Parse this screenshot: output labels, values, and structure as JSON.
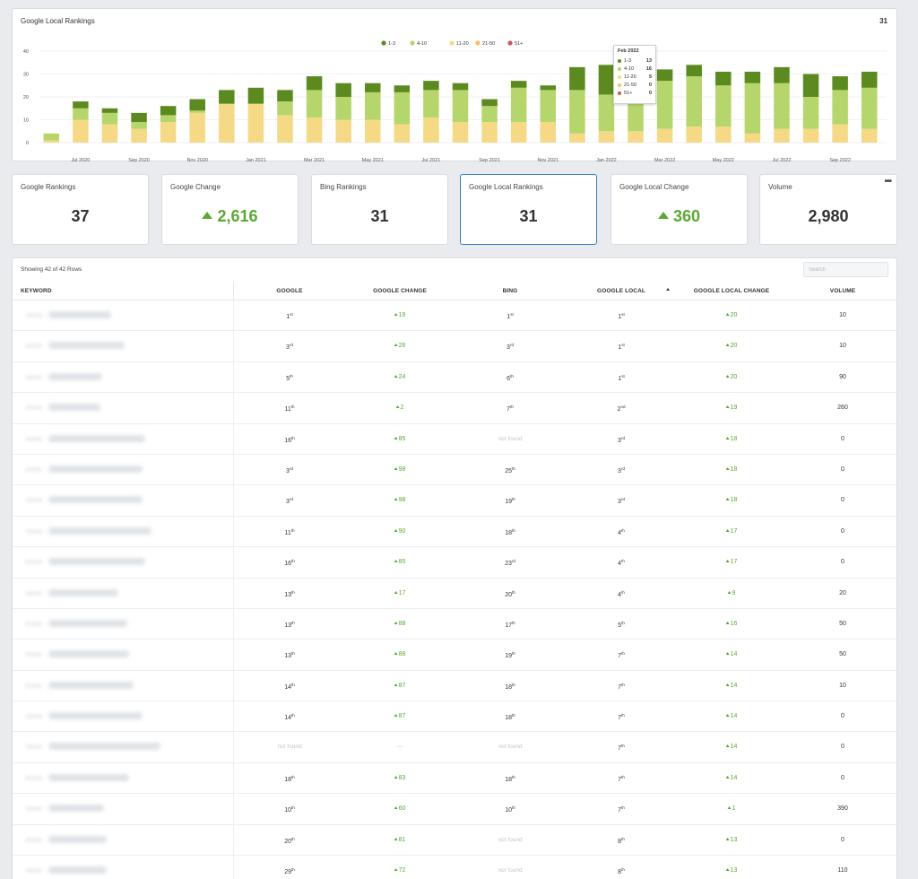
{
  "chart": {
    "title": "Google Local Rankings",
    "total": "31"
  },
  "chart_data": {
    "type": "bar",
    "stacked": true,
    "title": "Google Local Rankings",
    "ylim": [
      0,
      40
    ],
    "yticks": [
      0,
      10,
      20,
      30,
      40
    ],
    "legend_position": "top-center",
    "series": [
      {
        "name": "1-3",
        "color": "#5b8a1f"
      },
      {
        "name": "4-10",
        "color": "#b5d66a"
      },
      {
        "name": "11-20",
        "color": "#f5d985"
      },
      {
        "name": "21-50",
        "color": "#f7c25c"
      },
      {
        "name": "51+",
        "color": "#d9534f"
      }
    ],
    "x_tick_labels": [
      "Jul 2020",
      "Sep 2020",
      "Nov 2020",
      "Jan 2021",
      "Mar 2021",
      "May 2021",
      "Jul 2021",
      "Sep 2021",
      "Nov 2021",
      "Jan 2022",
      "Mar 2022",
      "May 2022",
      "Jul 2022",
      "Sep 2022"
    ],
    "bars": [
      {
        "s1": 0,
        "s2": 3,
        "s3": 1
      },
      {
        "s1": 3,
        "s2": 5,
        "s3": 10
      },
      {
        "s1": 2,
        "s2": 5,
        "s3": 8
      },
      {
        "s1": 4,
        "s2": 3,
        "s3": 6
      },
      {
        "s1": 4,
        "s2": 3,
        "s3": 9
      },
      {
        "s1": 5,
        "s2": 1,
        "s3": 13
      },
      {
        "s1": 6,
        "s2": 0,
        "s3": 17
      },
      {
        "s1": 7,
        "s2": 0,
        "s3": 17
      },
      {
        "s1": 5,
        "s2": 6,
        "s3": 12
      },
      {
        "s1": 6,
        "s2": 12,
        "s3": 11
      },
      {
        "s1": 6,
        "s2": 10,
        "s3": 10
      },
      {
        "s1": 4,
        "s2": 12,
        "s3": 10
      },
      {
        "s1": 3,
        "s2": 14,
        "s3": 8
      },
      {
        "s1": 4,
        "s2": 12,
        "s3": 11
      },
      {
        "s1": 3,
        "s2": 14,
        "s3": 9
      },
      {
        "s1": 3,
        "s2": 7,
        "s3": 9
      },
      {
        "s1": 3,
        "s2": 15,
        "s3": 9
      },
      {
        "s1": 2,
        "s2": 14,
        "s3": 9
      },
      {
        "s1": 10,
        "s2": 19,
        "s3": 4
      },
      {
        "s1": 13,
        "s2": 16,
        "s3": 5
      },
      {
        "s1": 12,
        "s2": 17,
        "s3": 5
      },
      {
        "s1": 5,
        "s2": 21,
        "s3": 6
      },
      {
        "s1": 5,
        "s2": 22,
        "s3": 7
      },
      {
        "s1": 6,
        "s2": 18,
        "s3": 7
      },
      {
        "s1": 5,
        "s2": 22,
        "s3": 4
      },
      {
        "s1": 7,
        "s2": 20,
        "s3": 6
      },
      {
        "s1": 10,
        "s2": 14,
        "s3": 6
      },
      {
        "s1": 6,
        "s2": 15,
        "s3": 8
      },
      {
        "s1": 7,
        "s2": 18,
        "s3": 6
      }
    ],
    "tooltip": {
      "title": "Feb 2022",
      "rows": [
        {
          "label": "1-3",
          "value": "13",
          "color": "#5b8a1f"
        },
        {
          "label": "4-10",
          "value": "16",
          "color": "#b5d66a"
        },
        {
          "label": "11-20",
          "value": "5",
          "color": "#f5d985"
        },
        {
          "label": "21-50",
          "value": "0",
          "color": "#f7c25c"
        },
        {
          "label": "51+",
          "value": "0",
          "color": "#d9534f"
        }
      ]
    }
  },
  "stats": [
    {
      "label": "Google Rankings",
      "value": "37",
      "positive": false
    },
    {
      "label": "Google Change",
      "value": "2,616",
      "positive": true
    },
    {
      "label": "Bing Rankings",
      "value": "31",
      "positive": false
    },
    {
      "label": "Google Local Rankings",
      "value": "31",
      "positive": false,
      "active": true
    },
    {
      "label": "Google Local Change",
      "value": "360",
      "positive": true
    },
    {
      "label": "Volume",
      "value": "2,980",
      "positive": false,
      "menu": "•••"
    }
  ],
  "table": {
    "rows_info": "Showing 42 of 42 Rows",
    "search_placeholder": "Search",
    "headers": {
      "keyword": "KEYWORD",
      "google": "GOOGLE",
      "google_change": "GOOGLE CHANGE",
      "bing": "BING",
      "google_local": "GOOGLE LOCAL",
      "google_local_change": "GOOGLE LOCAL CHANGE",
      "volume": "VOLUME"
    },
    "rows": [
      {
        "google": [
          "1",
          "st"
        ],
        "gchange": "19",
        "bing": [
          "1",
          "st"
        ],
        "glocal": [
          "1",
          "st"
        ],
        "glchange": "20",
        "volume": "10"
      },
      {
        "google": [
          "3",
          "rd"
        ],
        "gchange": "26",
        "bing": [
          "3",
          "rd"
        ],
        "glocal": [
          "1",
          "st"
        ],
        "glchange": "20",
        "volume": "10"
      },
      {
        "google": [
          "5",
          "th"
        ],
        "gchange": "24",
        "bing": [
          "6",
          "th"
        ],
        "glocal": [
          "1",
          "st"
        ],
        "glchange": "20",
        "volume": "90"
      },
      {
        "google": [
          "11",
          "th"
        ],
        "gchange": "2",
        "bing": [
          "7",
          "th"
        ],
        "glocal": [
          "2",
          "nd"
        ],
        "glchange": "19",
        "volume": "260"
      },
      {
        "google": [
          "16",
          "th"
        ],
        "gchange": "85",
        "bing": null,
        "glocal": [
          "3",
          "rd"
        ],
        "glchange": "18",
        "volume": "0"
      },
      {
        "google": [
          "3",
          "rd"
        ],
        "gchange": "98",
        "bing": [
          "25",
          "th"
        ],
        "glocal": [
          "3",
          "rd"
        ],
        "glchange": "18",
        "volume": "0"
      },
      {
        "google": [
          "3",
          "rd"
        ],
        "gchange": "98",
        "bing": [
          "19",
          "th"
        ],
        "glocal": [
          "3",
          "rd"
        ],
        "glchange": "18",
        "volume": "0"
      },
      {
        "google": [
          "11",
          "th"
        ],
        "gchange": "90",
        "bing": [
          "18",
          "th"
        ],
        "glocal": [
          "4",
          "th"
        ],
        "glchange": "17",
        "volume": "0"
      },
      {
        "google": [
          "16",
          "th"
        ],
        "gchange": "85",
        "bing": [
          "23",
          "rd"
        ],
        "glocal": [
          "4",
          "th"
        ],
        "glchange": "17",
        "volume": "0"
      },
      {
        "google": [
          "13",
          "th"
        ],
        "gchange": "17",
        "bing": [
          "20",
          "th"
        ],
        "glocal": [
          "4",
          "th"
        ],
        "glchange": "9",
        "volume": "20"
      },
      {
        "google": [
          "13",
          "th"
        ],
        "gchange": "88",
        "bing": [
          "17",
          "th"
        ],
        "glocal": [
          "5",
          "th"
        ],
        "glchange": "16",
        "volume": "50"
      },
      {
        "google": [
          "13",
          "th"
        ],
        "gchange": "88",
        "bing": [
          "19",
          "th"
        ],
        "glocal": [
          "7",
          "th"
        ],
        "glchange": "14",
        "volume": "50"
      },
      {
        "google": [
          "14",
          "th"
        ],
        "gchange": "87",
        "bing": [
          "18",
          "th"
        ],
        "glocal": [
          "7",
          "th"
        ],
        "glchange": "14",
        "volume": "10"
      },
      {
        "google": [
          "14",
          "th"
        ],
        "gchange": "87",
        "bing": [
          "18",
          "th"
        ],
        "glocal": [
          "7",
          "th"
        ],
        "glchange": "14",
        "volume": "0"
      },
      {
        "google": null,
        "gchange": null,
        "bing": null,
        "glocal": [
          "7",
          "th"
        ],
        "glchange": "14",
        "volume": "0"
      },
      {
        "google": [
          "18",
          "th"
        ],
        "gchange": "83",
        "bing": [
          "18",
          "th"
        ],
        "glocal": [
          "7",
          "th"
        ],
        "glchange": "14",
        "volume": "0"
      },
      {
        "google": [
          "10",
          "th"
        ],
        "gchange": "60",
        "bing": [
          "10",
          "th"
        ],
        "glocal": [
          "7",
          "th"
        ],
        "glchange": "1",
        "volume": "390"
      },
      {
        "google": [
          "20",
          "th"
        ],
        "gchange": "81",
        "bing": null,
        "glocal": [
          "8",
          "th"
        ],
        "glchange": "13",
        "volume": "0"
      },
      {
        "google": [
          "29",
          "th"
        ],
        "gchange": "72",
        "bing": null,
        "glocal": [
          "8",
          "th"
        ],
        "glchange": "13",
        "volume": "110"
      }
    ],
    "not_found_text": "not found",
    "dash_text": "—"
  }
}
